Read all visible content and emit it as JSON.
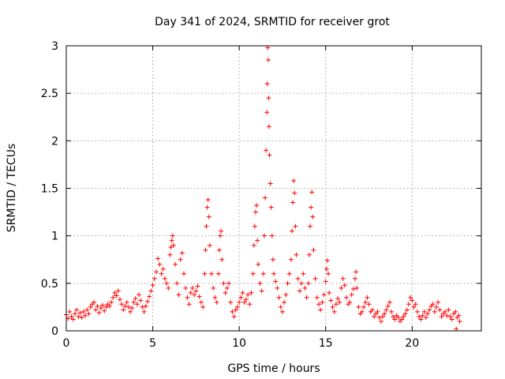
{
  "chart_data": {
    "type": "scatter",
    "title": "Day 341 of 2024, SRMTID for receiver grot",
    "xlabel": "GPS time / hours",
    "ylabel": "SRMTID / TECUs",
    "xlim": [
      0,
      24
    ],
    "ylim": [
      0,
      3
    ],
    "xticks": [
      0,
      5,
      10,
      15,
      20
    ],
    "xtick_labels": [
      "0",
      "5",
      "10",
      "15",
      "20"
    ],
    "yticks": [
      0,
      0.5,
      1,
      1.5,
      2,
      2.5,
      3
    ],
    "ytick_labels": [
      "0",
      "0.5",
      "1",
      "1.5",
      "2",
      "2.5",
      "3"
    ],
    "grid": true,
    "marker": "+",
    "color": "#ff0000",
    "series": [
      {
        "name": "SRMTID",
        "points": [
          [
            0.0,
            0.17
          ],
          [
            0.1,
            0.13
          ],
          [
            0.2,
            0.2
          ],
          [
            0.3,
            0.15
          ],
          [
            0.4,
            0.12
          ],
          [
            0.5,
            0.18
          ],
          [
            0.6,
            0.22
          ],
          [
            0.7,
            0.15
          ],
          [
            0.8,
            0.19
          ],
          [
            0.9,
            0.14
          ],
          [
            1.0,
            0.2
          ],
          [
            1.1,
            0.16
          ],
          [
            1.2,
            0.22
          ],
          [
            1.3,
            0.18
          ],
          [
            1.4,
            0.25
          ],
          [
            1.5,
            0.28
          ],
          [
            1.6,
            0.3
          ],
          [
            1.7,
            0.22
          ],
          [
            1.8,
            0.26
          ],
          [
            1.9,
            0.19
          ],
          [
            2.0,
            0.24
          ],
          [
            2.1,
            0.27
          ],
          [
            2.2,
            0.21
          ],
          [
            2.3,
            0.25
          ],
          [
            2.4,
            0.28
          ],
          [
            2.5,
            0.26
          ],
          [
            2.6,
            0.3
          ],
          [
            2.7,
            0.35
          ],
          [
            2.8,
            0.4
          ],
          [
            2.9,
            0.37
          ],
          [
            3.0,
            0.42
          ],
          [
            3.1,
            0.33
          ],
          [
            3.2,
            0.28
          ],
          [
            3.3,
            0.22
          ],
          [
            3.4,
            0.26
          ],
          [
            3.5,
            0.3
          ],
          [
            3.6,
            0.25
          ],
          [
            3.7,
            0.2
          ],
          [
            3.8,
            0.24
          ],
          [
            3.9,
            0.3
          ],
          [
            4.0,
            0.34
          ],
          [
            4.1,
            0.28
          ],
          [
            4.2,
            0.38
          ],
          [
            4.3,
            0.32
          ],
          [
            4.4,
            0.25
          ],
          [
            4.5,
            0.2
          ],
          [
            4.6,
            0.26
          ],
          [
            4.7,
            0.31
          ],
          [
            4.8,
            0.36
          ],
          [
            4.9,
            0.42
          ],
          [
            5.0,
            0.48
          ],
          [
            5.1,
            0.55
          ],
          [
            5.2,
            0.62
          ],
          [
            5.3,
            0.76
          ],
          [
            5.4,
            0.7
          ],
          [
            5.5,
            0.6
          ],
          [
            5.6,
            0.65
          ],
          [
            5.7,
            0.55
          ],
          [
            5.8,
            0.5
          ],
          [
            5.9,
            0.45
          ],
          [
            6.0,
            0.8
          ],
          [
            6.05,
            0.88
          ],
          [
            6.1,
            0.95
          ],
          [
            6.15,
            1.0
          ],
          [
            6.2,
            0.9
          ],
          [
            6.3,
            0.7
          ],
          [
            6.4,
            0.5
          ],
          [
            6.5,
            0.38
          ],
          [
            6.6,
            0.75
          ],
          [
            6.7,
            0.82
          ],
          [
            6.8,
            0.6
          ],
          [
            6.9,
            0.45
          ],
          [
            7.0,
            0.35
          ],
          [
            7.1,
            0.28
          ],
          [
            7.2,
            0.4
          ],
          [
            7.3,
            0.45
          ],
          [
            7.4,
            0.38
          ],
          [
            7.5,
            0.42
          ],
          [
            7.6,
            0.47
          ],
          [
            7.7,
            0.36
          ],
          [
            7.8,
            0.3
          ],
          [
            7.9,
            0.25
          ],
          [
            8.0,
            0.6
          ],
          [
            8.05,
            0.85
          ],
          [
            8.1,
            1.1
          ],
          [
            8.15,
            1.3
          ],
          [
            8.2,
            1.38
          ],
          [
            8.25,
            1.2
          ],
          [
            8.3,
            0.9
          ],
          [
            8.4,
            0.6
          ],
          [
            8.5,
            0.45
          ],
          [
            8.6,
            0.35
          ],
          [
            8.7,
            0.3
          ],
          [
            8.8,
            0.6
          ],
          [
            8.85,
            0.85
          ],
          [
            8.9,
            1.0
          ],
          [
            8.95,
            1.05
          ],
          [
            9.0,
            0.75
          ],
          [
            9.1,
            0.5
          ],
          [
            9.2,
            0.4
          ],
          [
            9.3,
            0.45
          ],
          [
            9.4,
            0.5
          ],
          [
            9.5,
            0.3
          ],
          [
            9.6,
            0.2
          ],
          [
            9.7,
            0.15
          ],
          [
            9.8,
            0.22
          ],
          [
            9.9,
            0.25
          ],
          [
            10.0,
            0.3
          ],
          [
            10.1,
            0.35
          ],
          [
            10.2,
            0.4
          ],
          [
            10.3,
            0.3
          ],
          [
            10.4,
            0.33
          ],
          [
            10.5,
            0.38
          ],
          [
            10.6,
            0.28
          ],
          [
            10.7,
            0.4
          ],
          [
            10.8,
            0.6
          ],
          [
            10.85,
            0.9
          ],
          [
            10.9,
            1.1
          ],
          [
            10.95,
            1.25
          ],
          [
            11.0,
            1.32
          ],
          [
            11.05,
            0.95
          ],
          [
            11.1,
            0.7
          ],
          [
            11.2,
            0.5
          ],
          [
            11.3,
            0.42
          ],
          [
            11.4,
            0.6
          ],
          [
            11.45,
            1.0
          ],
          [
            11.5,
            1.4
          ],
          [
            11.55,
            1.9
          ],
          [
            11.6,
            2.3
          ],
          [
            11.62,
            2.6
          ],
          [
            11.65,
            2.98
          ],
          [
            11.68,
            2.85
          ],
          [
            11.7,
            2.45
          ],
          [
            11.72,
            2.15
          ],
          [
            11.75,
            1.85
          ],
          [
            11.8,
            1.55
          ],
          [
            11.85,
            1.3
          ],
          [
            11.9,
            1.0
          ],
          [
            11.95,
            0.75
          ],
          [
            12.0,
            0.6
          ],
          [
            12.1,
            0.52
          ],
          [
            12.2,
            0.45
          ],
          [
            12.3,
            0.35
          ],
          [
            12.4,
            0.25
          ],
          [
            12.5,
            0.2
          ],
          [
            12.6,
            0.3
          ],
          [
            12.7,
            0.38
          ],
          [
            12.8,
            0.5
          ],
          [
            12.9,
            0.6
          ],
          [
            13.0,
            0.75
          ],
          [
            13.05,
            1.05
          ],
          [
            13.1,
            1.35
          ],
          [
            13.15,
            1.58
          ],
          [
            13.2,
            1.45
          ],
          [
            13.25,
            1.1
          ],
          [
            13.3,
            0.8
          ],
          [
            13.4,
            0.55
          ],
          [
            13.5,
            0.42
          ],
          [
            13.6,
            0.5
          ],
          [
            13.7,
            0.6
          ],
          [
            13.8,
            0.45
          ],
          [
            13.9,
            0.35
          ],
          [
            14.0,
            0.5
          ],
          [
            14.05,
            0.8
          ],
          [
            14.1,
            1.1
          ],
          [
            14.15,
            1.3
          ],
          [
            14.2,
            1.46
          ],
          [
            14.25,
            1.2
          ],
          [
            14.3,
            0.85
          ],
          [
            14.4,
            0.55
          ],
          [
            14.5,
            0.35
          ],
          [
            14.6,
            0.28
          ],
          [
            14.7,
            0.22
          ],
          [
            14.8,
            0.3
          ],
          [
            14.9,
            0.38
          ],
          [
            15.0,
            0.52
          ],
          [
            15.05,
            0.65
          ],
          [
            15.1,
            0.74
          ],
          [
            15.15,
            0.6
          ],
          [
            15.2,
            0.4
          ],
          [
            15.3,
            0.32
          ],
          [
            15.4,
            0.25
          ],
          [
            15.5,
            0.2
          ],
          [
            15.6,
            0.28
          ],
          [
            15.7,
            0.34
          ],
          [
            15.8,
            0.3
          ],
          [
            15.9,
            0.45
          ],
          [
            16.0,
            0.55
          ],
          [
            16.1,
            0.48
          ],
          [
            16.2,
            0.35
          ],
          [
            16.3,
            0.28
          ],
          [
            16.4,
            0.3
          ],
          [
            16.5,
            0.38
          ],
          [
            16.6,
            0.44
          ],
          [
            16.7,
            0.55
          ],
          [
            16.75,
            0.62
          ],
          [
            16.8,
            0.45
          ],
          [
            16.9,
            0.25
          ],
          [
            17.0,
            0.18
          ],
          [
            17.1,
            0.2
          ],
          [
            17.2,
            0.25
          ],
          [
            17.3,
            0.3
          ],
          [
            17.4,
            0.35
          ],
          [
            17.5,
            0.28
          ],
          [
            17.6,
            0.2
          ],
          [
            17.7,
            0.22
          ],
          [
            17.8,
            0.15
          ],
          [
            17.9,
            0.18
          ],
          [
            18.0,
            0.2
          ],
          [
            18.1,
            0.14
          ],
          [
            18.2,
            0.1
          ],
          [
            18.3,
            0.15
          ],
          [
            18.4,
            0.18
          ],
          [
            18.5,
            0.22
          ],
          [
            18.6,
            0.26
          ],
          [
            18.7,
            0.3
          ],
          [
            18.8,
            0.2
          ],
          [
            18.9,
            0.15
          ],
          [
            19.0,
            0.12
          ],
          [
            19.1,
            0.16
          ],
          [
            19.2,
            0.14
          ],
          [
            19.3,
            0.1
          ],
          [
            19.4,
            0.12
          ],
          [
            19.5,
            0.15
          ],
          [
            19.6,
            0.18
          ],
          [
            19.7,
            0.22
          ],
          [
            19.8,
            0.28
          ],
          [
            19.9,
            0.35
          ],
          [
            20.0,
            0.32
          ],
          [
            20.1,
            0.25
          ],
          [
            20.2,
            0.28
          ],
          [
            20.3,
            0.2
          ],
          [
            20.4,
            0.15
          ],
          [
            20.5,
            0.12
          ],
          [
            20.6,
            0.16
          ],
          [
            20.7,
            0.2
          ],
          [
            20.8,
            0.14
          ],
          [
            20.9,
            0.18
          ],
          [
            21.0,
            0.22
          ],
          [
            21.1,
            0.26
          ],
          [
            21.2,
            0.28
          ],
          [
            21.3,
            0.2
          ],
          [
            21.4,
            0.25
          ],
          [
            21.5,
            0.3
          ],
          [
            21.6,
            0.22
          ],
          [
            21.7,
            0.15
          ],
          [
            21.8,
            0.18
          ],
          [
            21.9,
            0.2
          ],
          [
            22.0,
            0.16
          ],
          [
            22.1,
            0.22
          ],
          [
            22.2,
            0.15
          ],
          [
            22.3,
            0.12
          ],
          [
            22.4,
            0.18
          ],
          [
            22.5,
            0.2
          ],
          [
            22.55,
            0.02
          ],
          [
            22.6,
            0.14
          ],
          [
            22.7,
            0.16
          ],
          [
            22.75,
            0.1
          ]
        ]
      }
    ]
  }
}
